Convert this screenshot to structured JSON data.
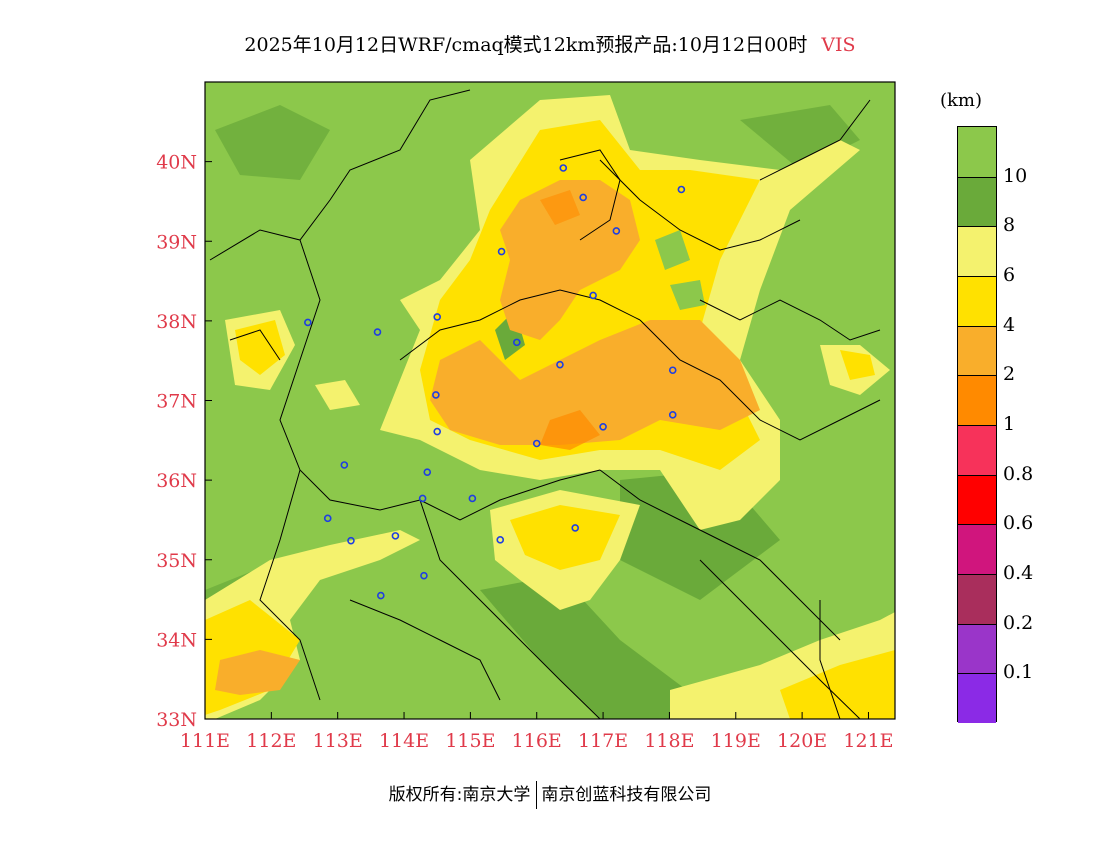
{
  "header": {
    "title": "2025年10月12日WRF/cmaq模式12km预报产品:10月12日00时",
    "variable": "VIS"
  },
  "chart_data": {
    "type": "heatmap",
    "title": "2025年10月12日WRF/cmaq模式12km预报产品:10月12日00时 VIS",
    "variable": "VIS",
    "units": "(km)",
    "lon_range": [
      111,
      121.4
    ],
    "lat_range": [
      33,
      41
    ],
    "x_ticks": [
      "111E",
      "112E",
      "113E",
      "114E",
      "115E",
      "116E",
      "117E",
      "118E",
      "119E",
      "120E",
      "121E"
    ],
    "y_ticks": [
      "33N",
      "34N",
      "35N",
      "36N",
      "37N",
      "38N",
      "39N",
      "40N"
    ],
    "legend_levels": [
      "10",
      "8",
      "6",
      "4",
      "2",
      "1",
      "0.8",
      "0.6",
      "0.4",
      "0.2",
      "0.1"
    ],
    "legend_colors": [
      "#8cc84b",
      "#6aaa3a",
      "#f4f26e",
      "#ffe100",
      "#f9ae2b",
      "#ff8a00",
      "#f7325a",
      "#ff0000",
      "#d0157d",
      "#a92e5c",
      "#9a35c9",
      "#8b2ae6"
    ],
    "stations": [
      [
        116.4,
        39.92
      ],
      [
        116.7,
        39.55
      ],
      [
        118.18,
        39.65
      ],
      [
        117.2,
        39.13
      ],
      [
        115.47,
        38.87
      ],
      [
        116.85,
        38.32
      ],
      [
        112.55,
        37.98
      ],
      [
        113.6,
        37.86
      ],
      [
        114.5,
        38.05
      ],
      [
        115.7,
        37.73
      ],
      [
        116.35,
        37.45
      ],
      [
        118.05,
        37.38
      ],
      [
        114.48,
        37.07
      ],
      [
        114.5,
        36.61
      ],
      [
        116.0,
        36.46
      ],
      [
        117.0,
        36.67
      ],
      [
        118.05,
        36.82
      ],
      [
        113.1,
        36.19
      ],
      [
        114.35,
        36.1
      ],
      [
        114.28,
        35.77
      ],
      [
        115.03,
        35.77
      ],
      [
        112.85,
        35.52
      ],
      [
        113.2,
        35.24
      ],
      [
        113.87,
        35.3
      ],
      [
        115.45,
        35.25
      ],
      [
        116.58,
        35.4
      ],
      [
        114.3,
        34.8
      ],
      [
        113.65,
        34.55
      ]
    ]
  },
  "legend": {
    "unit": "(km)",
    "labels": [
      "10",
      "8",
      "6",
      "4",
      "2",
      "1",
      "0.8",
      "0.6",
      "0.4",
      "0.2",
      "0.1"
    ]
  },
  "footer": {
    "owner_label": "版权所有:南京大学",
    "company": "南京创蓝科技有限公司"
  }
}
